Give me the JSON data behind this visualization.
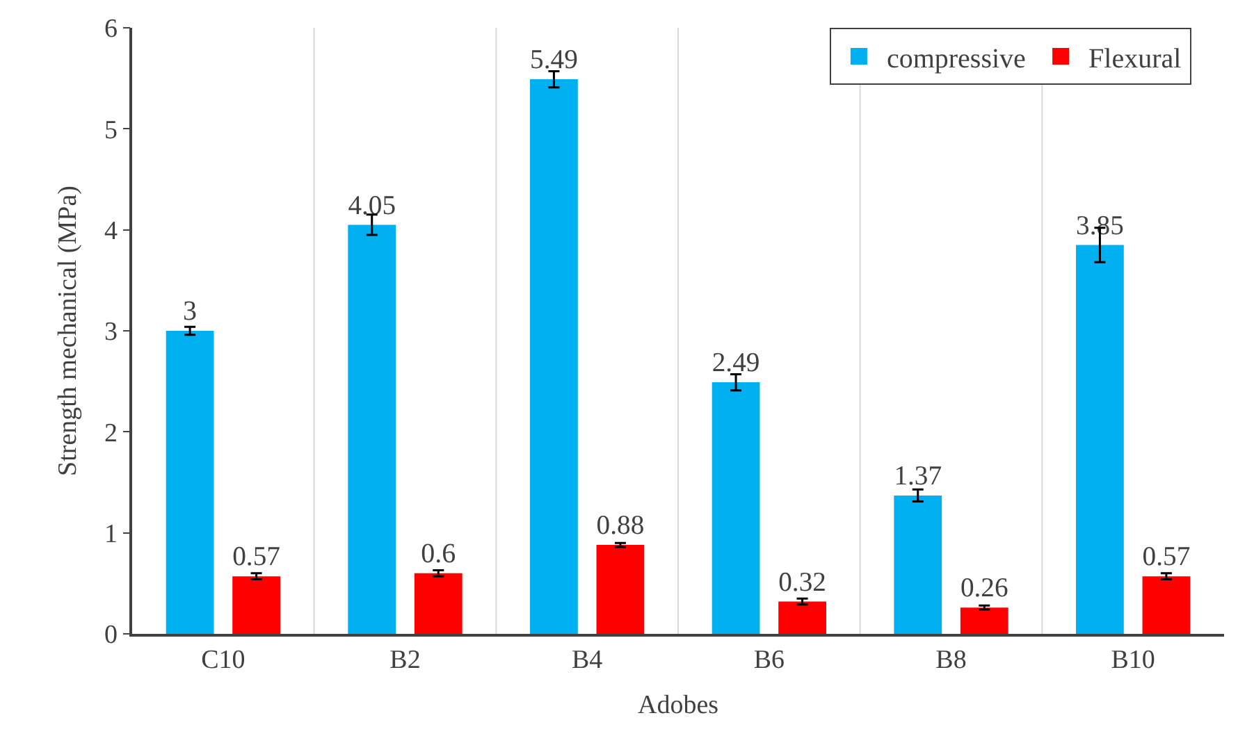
{
  "chart_data": {
    "type": "bar",
    "xlabel": "Adobes",
    "ylabel": "Strength mechanical (MPa)",
    "categories": [
      "C10",
      "B2",
      "B4",
      "B6",
      "B8",
      "B10"
    ],
    "series": [
      {
        "name": "compressive",
        "color": "#00b0f0",
        "values": [
          3,
          4.05,
          5.49,
          2.49,
          1.37,
          3.85
        ],
        "errors": [
          0.04,
          0.1,
          0.08,
          0.08,
          0.06,
          0.17
        ]
      },
      {
        "name": "Flexural",
        "color": "#ff0000",
        "values": [
          0.57,
          0.6,
          0.88,
          0.32,
          0.26,
          0.57
        ],
        "errors": [
          0.03,
          0.03,
          0.02,
          0.03,
          0.02,
          0.03
        ]
      }
    ],
    "ylim": [
      0,
      6
    ],
    "yticks": [
      0,
      1,
      2,
      3,
      4,
      5,
      6
    ],
    "grid": "x",
    "legend": "top right",
    "data_labels": true
  }
}
